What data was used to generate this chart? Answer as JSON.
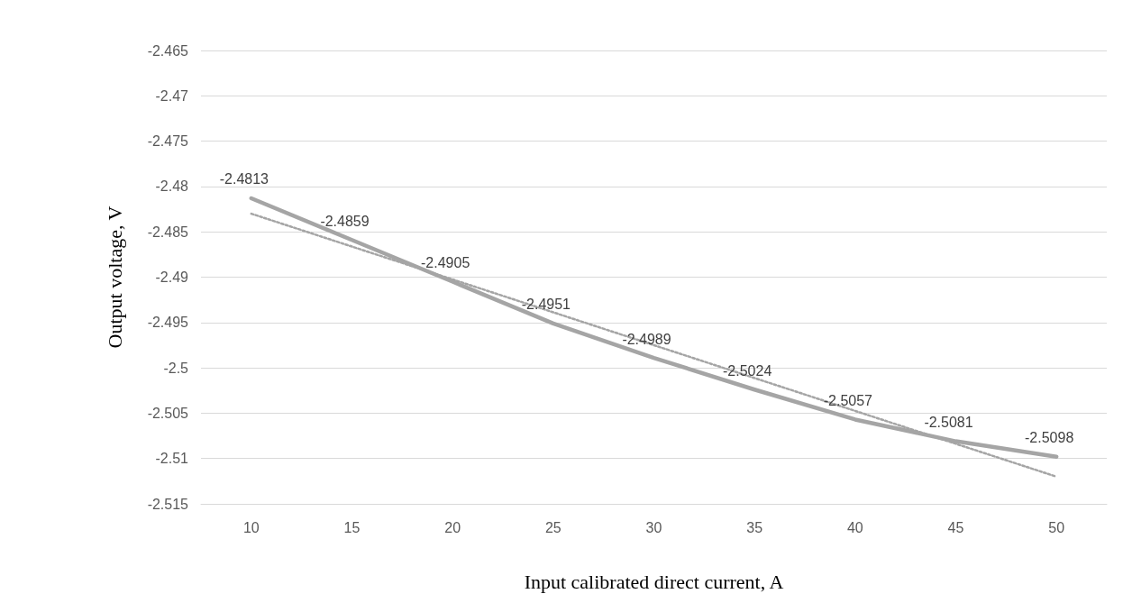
{
  "chart_data": {
    "type": "line",
    "xlabel": "Input calibrated direct current, A",
    "ylabel": "Output voltage, V",
    "categories": [
      "10",
      "15",
      "20",
      "25",
      "30",
      "35",
      "40",
      "45",
      "50"
    ],
    "ylim": [
      -2.515,
      -2.465
    ],
    "yticks": [
      -2.515,
      -2.51,
      -2.505,
      -2.5,
      -2.495,
      -2.49,
      -2.485,
      -2.48,
      -2.475,
      -2.47,
      -2.465
    ],
    "grid": "y",
    "series": [
      {
        "color": "#a5a5a5",
        "marker": "none",
        "line_style": "solid",
        "values": [
          -2.4813,
          -2.4859,
          -2.4905,
          -2.4951,
          -2.4989,
          -2.5024,
          -2.5057,
          -2.5081,
          -2.5098
        ],
        "value_labels": [
          "-2.4813",
          "-2.4859",
          "-2.4905",
          "-2.4951",
          "-2.4989",
          "-2.5024",
          "-2.5057",
          "-2.5081",
          "-2.5098"
        ]
      },
      {
        "type": "line",
        "color": "#a5a5a5",
        "marker": "none",
        "line_style": "dotted",
        "x": [
          "10",
          "50"
        ],
        "values": [
          -2.483,
          -2.512
        ]
      }
    ]
  }
}
